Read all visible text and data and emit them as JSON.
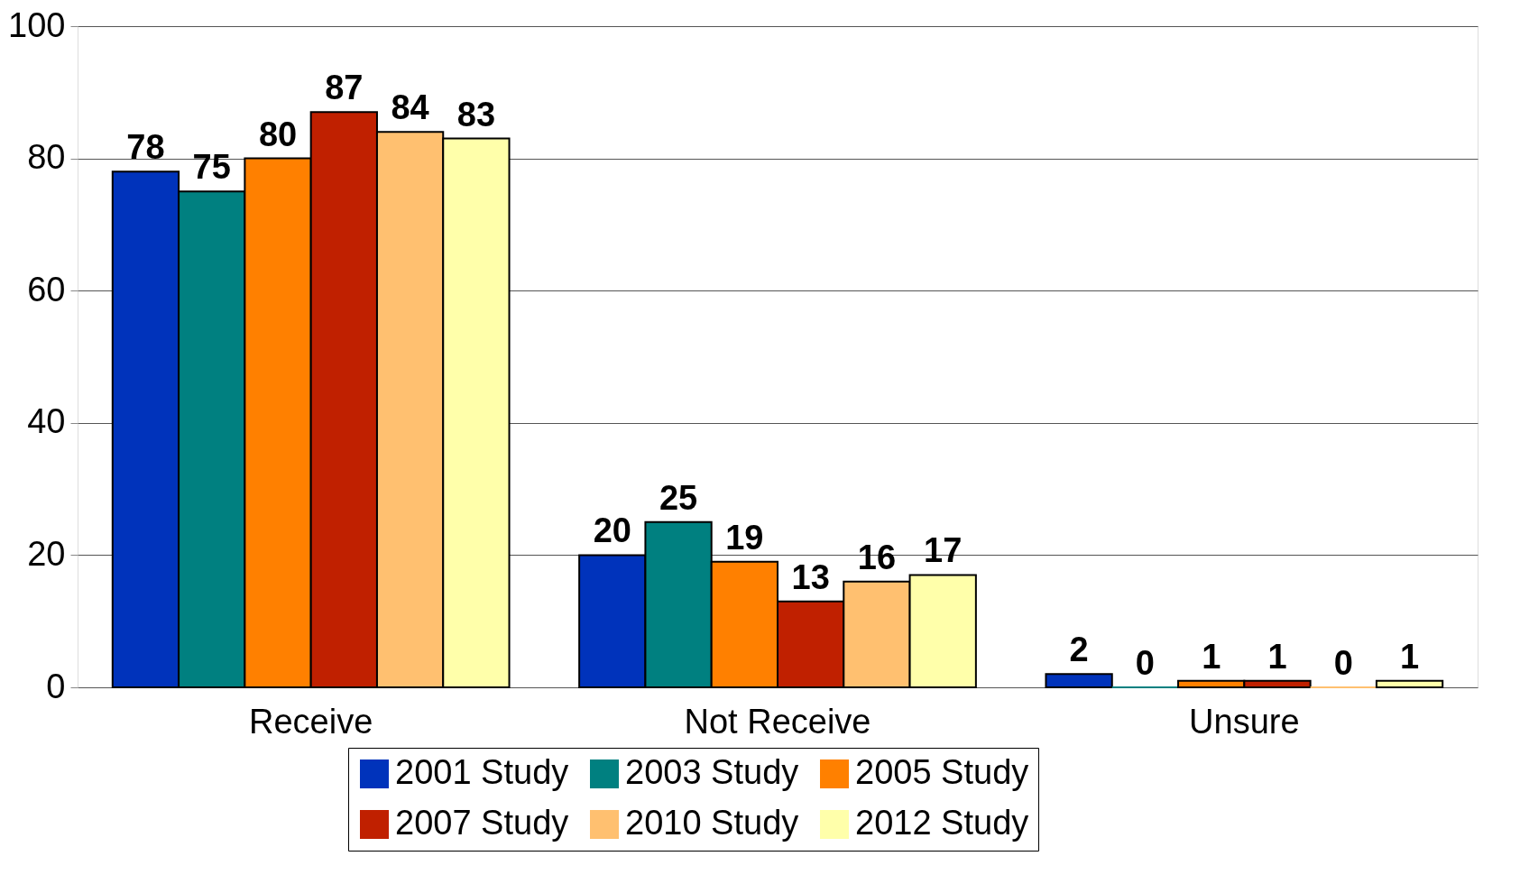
{
  "chart_data": {
    "type": "bar",
    "categories": [
      "Receive",
      "Not Receive",
      "Unsure"
    ],
    "series": [
      {
        "name": "2001 Study",
        "color": "#0033bb",
        "values": [
          78,
          20,
          2
        ]
      },
      {
        "name": "2003 Study",
        "color": "#008080",
        "values": [
          75,
          25,
          0
        ]
      },
      {
        "name": "2005 Study",
        "color": "#ff8000",
        "values": [
          80,
          19,
          1
        ]
      },
      {
        "name": "2007 Study",
        "color": "#c02000",
        "values": [
          87,
          13,
          1
        ]
      },
      {
        "name": "2010 Study",
        "color": "#ffc070",
        "values": [
          84,
          16,
          0
        ]
      },
      {
        "name": "2012 Study",
        "color": "#ffffaa",
        "values": [
          83,
          17,
          1
        ]
      }
    ],
    "ylim": [
      0,
      100
    ],
    "yticks": [
      0,
      20,
      40,
      60,
      80,
      100
    ],
    "grid": "y",
    "legend": "bottom",
    "data_labels": true
  }
}
